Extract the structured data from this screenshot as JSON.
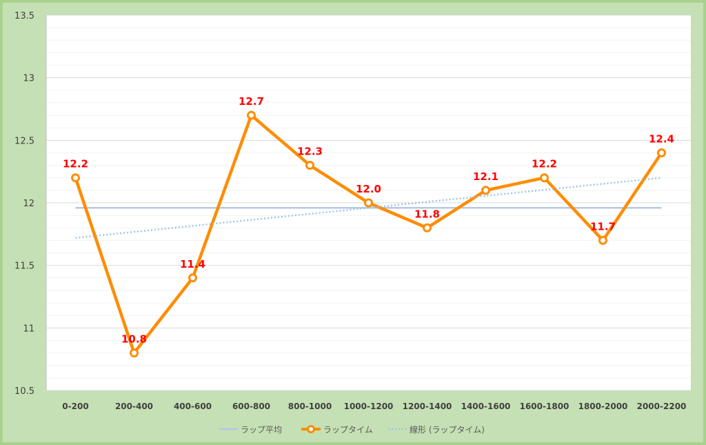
{
  "chart_data": {
    "type": "line",
    "categories": [
      "0-200",
      "200-400",
      "400-600",
      "600-800",
      "800-1000",
      "1000-1200",
      "1200-1400",
      "1400-1600",
      "1600-1800",
      "1800-2000",
      "2000-2200"
    ],
    "series": [
      {
        "name": "ラップ平均",
        "values": [
          11.96,
          11.96,
          11.96,
          11.96,
          11.96,
          11.96,
          11.96,
          11.96,
          11.96,
          11.96,
          11.96
        ],
        "color": "#b4c7e7",
        "style": "solid"
      },
      {
        "name": "ラップタイム",
        "values": [
          12.2,
          10.8,
          11.4,
          12.7,
          12.3,
          12.0,
          11.8,
          12.1,
          12.2,
          11.7,
          12.4
        ],
        "data_labels": [
          "12.2",
          "10.8",
          "11.4",
          "12.7",
          "12.3",
          "12.0",
          "11.8",
          "12.1",
          "12.2",
          "11.7",
          "12.4"
        ],
        "color": "#ff8c00",
        "style": "solid-markers"
      },
      {
        "name": "線形 (ラップタイム)",
        "trend_start": 11.72,
        "trend_end": 12.2,
        "color": "#9dc3e6",
        "style": "dotted"
      }
    ],
    "ylim": [
      10.5,
      13.5
    ],
    "yticks": [
      "10.5",
      "11",
      "11.5",
      "12",
      "12.5",
      "13",
      "13.5"
    ],
    "ytick_values": [
      10.5,
      11,
      11.5,
      12,
      12.5,
      13,
      13.5
    ],
    "title": "",
    "xlabel": "",
    "ylabel": "",
    "grid": true,
    "legend": "bottom",
    "colors": {
      "background": "#c5e0b4",
      "plot": "#ffffff",
      "label": "#ff0000"
    }
  }
}
